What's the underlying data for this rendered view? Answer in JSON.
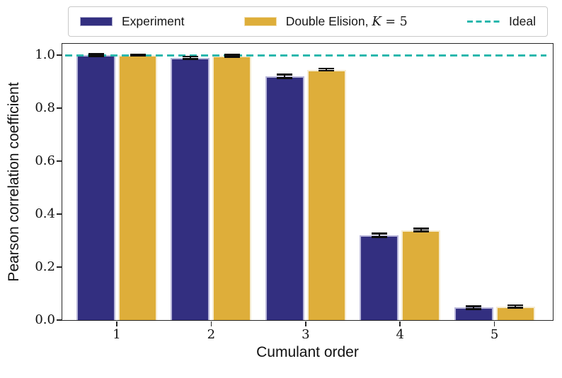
{
  "figure": {
    "xlabel": "Cumulant order",
    "ylabel": "Pearson correlation coefficient"
  },
  "legend": {
    "position": "top",
    "items": [
      {
        "label": "Experiment",
        "swatch": "patch"
      },
      {
        "label_prefix": "Double Elision, ",
        "label_math_var": "K",
        "label_suffix": " = 5",
        "swatch": "patch"
      },
      {
        "label": "Ideal",
        "swatch": "dashed-line"
      }
    ]
  },
  "colors": {
    "experiment": "#332f80",
    "experiment_edge": "#b9b7da",
    "double_elision": "#deae3a",
    "double_elision_edge": "#f6ecd2",
    "ideal": "#2ab7ad",
    "axis": "#262626",
    "error_bar": "#0d0d0d"
  },
  "chart_data": {
    "type": "bar",
    "title": "",
    "categories": [
      "1",
      "2",
      "3",
      "4",
      "5"
    ],
    "xlabel": "Cumulant order",
    "ylabel": "Pearson correlation coefficient",
    "ylim": [
      0,
      1.043
    ],
    "yticks": [
      0.0,
      0.2,
      0.4,
      0.6,
      0.8,
      1.0
    ],
    "ytick_labels": [
      "0.0",
      "0.2",
      "0.4",
      "0.6",
      "0.8",
      "1.0"
    ],
    "grid": false,
    "legend_position": "top",
    "series": [
      {
        "name": "Experiment",
        "color": "#332f80",
        "edge_color": "#b9b7da",
        "values": [
          1.0,
          0.99,
          0.92,
          0.32,
          0.047
        ],
        "errors": [
          0.004,
          0.005,
          0.006,
          0.007,
          0.005
        ]
      },
      {
        "name": "Double Elision, K = 5",
        "color": "#deae3a",
        "edge_color": "#f6ecd2",
        "values": [
          1.0,
          0.997,
          0.945,
          0.34,
          0.051
        ],
        "errors": [
          0.003,
          0.004,
          0.004,
          0.006,
          0.005
        ]
      }
    ],
    "reference_line": {
      "name": "Ideal",
      "value": 1.0,
      "color": "#2ab7ad",
      "style": "dashed"
    }
  }
}
